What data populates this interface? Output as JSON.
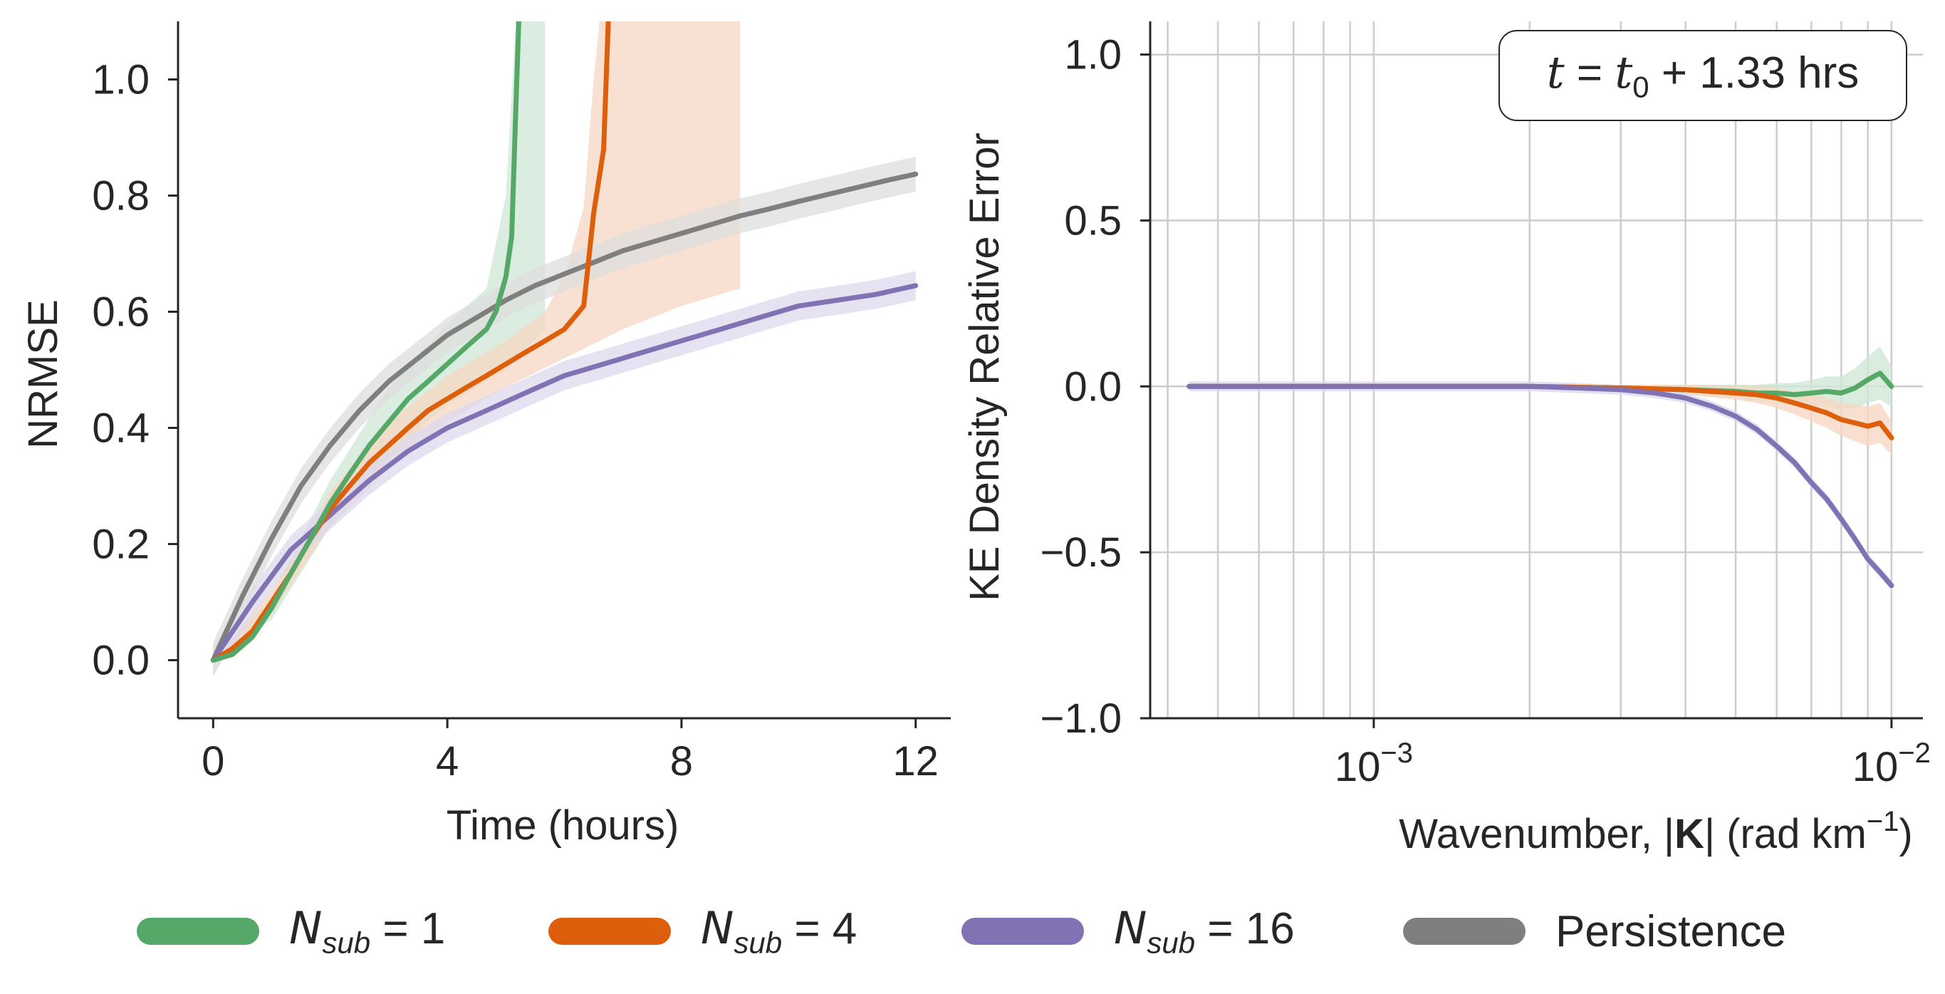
{
  "colors": {
    "n1": "#55a868",
    "n4": "#dd5f0b",
    "n16": "#8172b3",
    "persistence": "#7f7f7f",
    "n1_band": "#cfe7d6",
    "n4_band": "#f6d7c3",
    "n16_band": "#dcd8ee",
    "persistence_band": "#dedede"
  },
  "legend": {
    "n1": {
      "prefix": "N",
      "sub": "sub",
      "suffix": " = 1"
    },
    "n4": {
      "prefix": "N",
      "sub": "sub",
      "suffix": " = 4"
    },
    "n16": {
      "prefix": "N",
      "sub": "sub",
      "suffix": " = 16"
    },
    "persistence": "Persistence"
  },
  "annotation": {
    "t": "t",
    "eq": " = ",
    "t0": "t",
    "t0_sub": "0",
    "plus": " + 1.33 hrs"
  },
  "chart_data": [
    {
      "type": "line",
      "xlabel": "Time (hours)",
      "ylabel": "NRMSE",
      "xlim": [
        -0.6,
        12.6
      ],
      "ylim": [
        -0.1,
        1.1
      ],
      "xticks": [
        "0",
        "4",
        "8",
        "12"
      ],
      "yticks": [
        "0.0",
        "0.2",
        "0.4",
        "0.6",
        "0.8",
        "1.0"
      ],
      "grid": false,
      "series": [
        {
          "key": "n1",
          "x": [
            0,
            0.33,
            0.67,
            1.0,
            1.33,
            1.67,
            2.0,
            2.33,
            2.67,
            3.0,
            3.33,
            3.67,
            4.0,
            4.33,
            4.67,
            4.83,
            5.0,
            5.1,
            5.17,
            5.22
          ],
          "y": [
            0.0,
            0.01,
            0.04,
            0.09,
            0.15,
            0.21,
            0.27,
            0.32,
            0.37,
            0.41,
            0.45,
            0.48,
            0.51,
            0.54,
            0.57,
            0.6,
            0.66,
            0.73,
            0.95,
            1.1
          ],
          "band_upper_x": [
            0,
            1,
            2,
            3,
            4,
            4.67,
            5.0,
            5.17,
            5.3
          ],
          "band_upper": [
            0.0,
            0.11,
            0.31,
            0.47,
            0.58,
            0.64,
            0.8,
            1.1,
            1.1
          ],
          "band_lower_x": [
            0,
            1,
            2,
            3,
            4,
            5,
            5.67,
            5.67
          ],
          "band_lower": [
            0.0,
            0.07,
            0.23,
            0.35,
            0.44,
            0.5,
            0.57,
            1.1
          ]
        },
        {
          "key": "n4",
          "x": [
            0,
            0.33,
            0.67,
            1.0,
            1.33,
            1.67,
            2.0,
            2.33,
            2.67,
            3.0,
            3.33,
            3.67,
            4.0,
            4.33,
            4.67,
            5.0,
            5.33,
            5.67,
            6.0,
            6.33,
            6.5,
            6.67,
            6.75
          ],
          "y": [
            0.0,
            0.02,
            0.05,
            0.1,
            0.15,
            0.21,
            0.26,
            0.3,
            0.34,
            0.37,
            0.4,
            0.43,
            0.45,
            0.47,
            0.49,
            0.51,
            0.53,
            0.55,
            0.57,
            0.61,
            0.77,
            0.88,
            1.1
          ],
          "band_upper_x": [
            0,
            1,
            2,
            3,
            4,
            5,
            5.67,
            6.0,
            6.33,
            6.5,
            6.6
          ],
          "band_upper": [
            0.0,
            0.12,
            0.29,
            0.41,
            0.49,
            0.55,
            0.6,
            0.66,
            0.78,
            1.0,
            1.1
          ],
          "band_lower_x": [
            0,
            1,
            2,
            3,
            4,
            5,
            6,
            7,
            8,
            9,
            9.0
          ],
          "band_lower": [
            0.0,
            0.08,
            0.23,
            0.33,
            0.41,
            0.47,
            0.52,
            0.57,
            0.61,
            0.64,
            1.1
          ]
        },
        {
          "key": "n16",
          "x": [
            0,
            0.67,
            1.33,
            2.0,
            2.67,
            3.33,
            4.0,
            4.67,
            5.33,
            6.0,
            6.67,
            7.33,
            8.0,
            8.67,
            9.33,
            10.0,
            10.67,
            11.33,
            12.0
          ],
          "y": [
            0.0,
            0.1,
            0.19,
            0.25,
            0.31,
            0.36,
            0.4,
            0.43,
            0.46,
            0.49,
            0.51,
            0.53,
            0.55,
            0.57,
            0.59,
            0.61,
            0.62,
            0.63,
            0.645
          ],
          "band_halfwidth": 0.025
        },
        {
          "key": "persistence",
          "x": [
            0,
            0.5,
            1.0,
            1.5,
            2.0,
            2.5,
            3.0,
            3.5,
            4.0,
            4.5,
            5.0,
            5.5,
            6.0,
            6.5,
            7.0,
            7.5,
            8.0,
            8.5,
            9.0,
            9.5,
            10.0,
            10.5,
            11.0,
            11.5,
            12.0
          ],
          "y": [
            0.0,
            0.11,
            0.21,
            0.3,
            0.37,
            0.43,
            0.48,
            0.52,
            0.56,
            0.59,
            0.62,
            0.645,
            0.665,
            0.685,
            0.705,
            0.72,
            0.735,
            0.75,
            0.765,
            0.777,
            0.79,
            0.802,
            0.814,
            0.826,
            0.837
          ],
          "band_halfwidth": 0.03
        }
      ]
    },
    {
      "type": "line",
      "xlabel": {
        "pre": "Wavenumber, |",
        "bold": "K",
        "post": "| (rad km",
        "sup": "−1",
        "end": ")"
      },
      "ylabel": "KE Density Relative Error",
      "xscale": "log",
      "xlim": [
        0.00037,
        0.0115
      ],
      "ylim": [
        -1.0,
        1.1
      ],
      "xticks": [
        {
          "base": "10",
          "exp": "−3",
          "value": 0.001
        },
        {
          "base": "10",
          "exp": "−2",
          "value": 0.01
        }
      ],
      "yticks": [
        "1.0",
        "0.5",
        "0.0",
        "−0.5",
        "−1.0"
      ],
      "grid": true,
      "series": [
        {
          "key": "n1",
          "x": [
            0.00044,
            0.001,
            0.002,
            0.003,
            0.004,
            0.005,
            0.0055,
            0.006,
            0.0065,
            0.007,
            0.0075,
            0.008,
            0.0085,
            0.009,
            0.0095,
            0.01
          ],
          "y": [
            0.0,
            0.0,
            0.0,
            -0.005,
            -0.01,
            -0.015,
            -0.02,
            -0.02,
            -0.025,
            -0.02,
            -0.015,
            -0.02,
            -0.005,
            0.02,
            0.04,
            0.0
          ],
          "band_halfwidth": [
            0.0,
            0.0,
            0.0,
            0.01,
            0.015,
            0.02,
            0.025,
            0.03,
            0.035,
            0.04,
            0.045,
            0.05,
            0.06,
            0.07,
            0.08,
            0.06
          ]
        },
        {
          "key": "n4",
          "x": [
            0.00044,
            0.001,
            0.002,
            0.003,
            0.004,
            0.005,
            0.0055,
            0.006,
            0.0065,
            0.007,
            0.0075,
            0.008,
            0.0085,
            0.009,
            0.0095,
            0.01
          ],
          "y": [
            0.0,
            0.0,
            0.0,
            -0.005,
            -0.01,
            -0.02,
            -0.025,
            -0.035,
            -0.05,
            -0.065,
            -0.08,
            -0.1,
            -0.11,
            -0.12,
            -0.11,
            -0.155
          ],
          "band_halfwidth": [
            0.0,
            0.0,
            0.0,
            0.01,
            0.015,
            0.02,
            0.025,
            0.03,
            0.035,
            0.04,
            0.045,
            0.05,
            0.055,
            0.06,
            0.06,
            0.05
          ]
        },
        {
          "key": "n16",
          "x": [
            0.00044,
            0.001,
            0.002,
            0.0025,
            0.003,
            0.0035,
            0.004,
            0.0045,
            0.005,
            0.0055,
            0.006,
            0.0065,
            0.007,
            0.0075,
            0.008,
            0.0085,
            0.009,
            0.0095,
            0.01
          ],
          "y": [
            0.0,
            0.0,
            0.0,
            -0.005,
            -0.01,
            -0.02,
            -0.035,
            -0.06,
            -0.09,
            -0.13,
            -0.18,
            -0.23,
            -0.29,
            -0.34,
            -0.4,
            -0.46,
            -0.52,
            -0.56,
            -0.6
          ],
          "band_halfwidth": 0.015
        }
      ]
    }
  ]
}
